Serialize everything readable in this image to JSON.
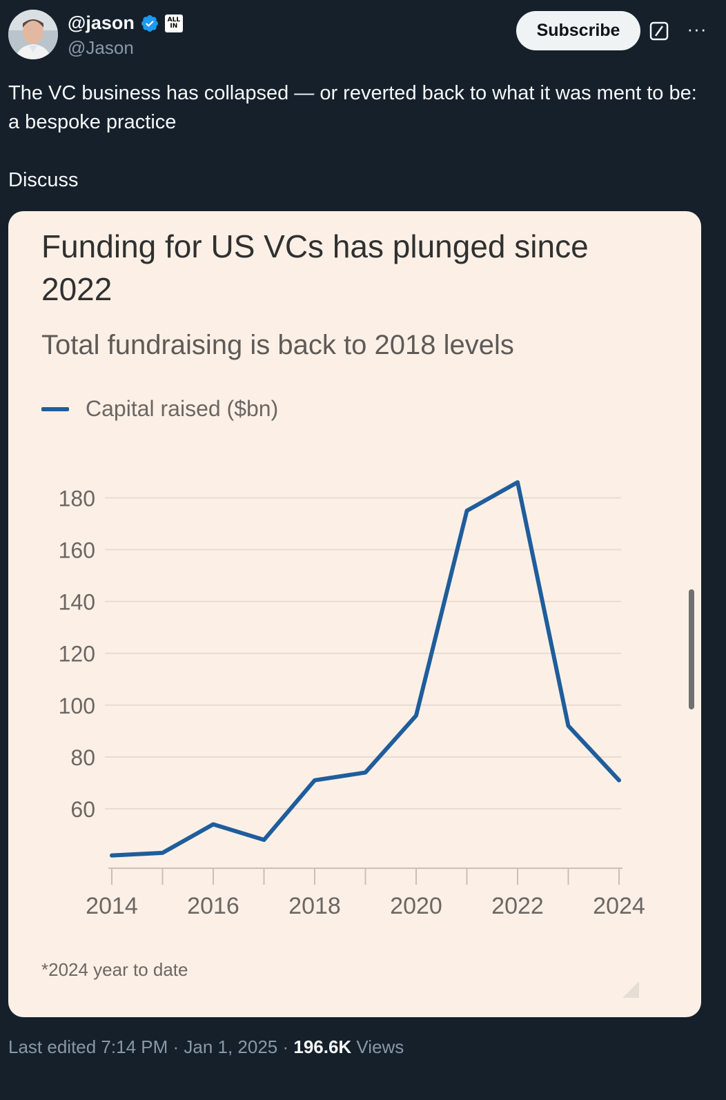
{
  "author": {
    "display_name": "@jason",
    "handle": "@Jason",
    "affiliate_badge_text": "ALL IN"
  },
  "actions": {
    "subscribe_label": "Subscribe",
    "grok_icon": "grok-icon",
    "more_icon": "more-icon"
  },
  "tweet": {
    "text_line1": "The VC business has collapsed — or reverted back to what it was ment to be: a bespoke practice",
    "text_line2": "Discuss"
  },
  "chart_data": {
    "type": "line",
    "title": "Funding for US VCs has plunged since 2022",
    "subtitle": "Total fundraising is back to 2018 levels",
    "series": [
      {
        "name": "Capital raised ($bn)",
        "color": "#1f5d9c",
        "x": [
          2014,
          2015,
          2016,
          2017,
          2018,
          2019,
          2020,
          2021,
          2022,
          2023,
          2024
        ],
        "values": [
          42,
          43,
          54,
          48,
          71,
          74,
          96,
          175,
          186,
          92,
          71
        ]
      }
    ],
    "x_ticks": [
      "2014",
      "2016",
      "2018",
      "2020",
      "2022",
      "2024"
    ],
    "y_ticks": [
      "180",
      "160",
      "140",
      "120",
      "100",
      "80",
      "60"
    ],
    "ylim": [
      40,
      190
    ],
    "grid": true,
    "legend_position": "top-left",
    "footnote": "*2024 year to date"
  },
  "meta": {
    "edited": "Last edited 7:14 PM · Jan 1, 2025 · ",
    "views_count": "196.6K",
    "views_label": " Views"
  },
  "colors": {
    "background": "#15202b",
    "card_background": "#fcf0e6",
    "line": "#1f5d9c"
  }
}
